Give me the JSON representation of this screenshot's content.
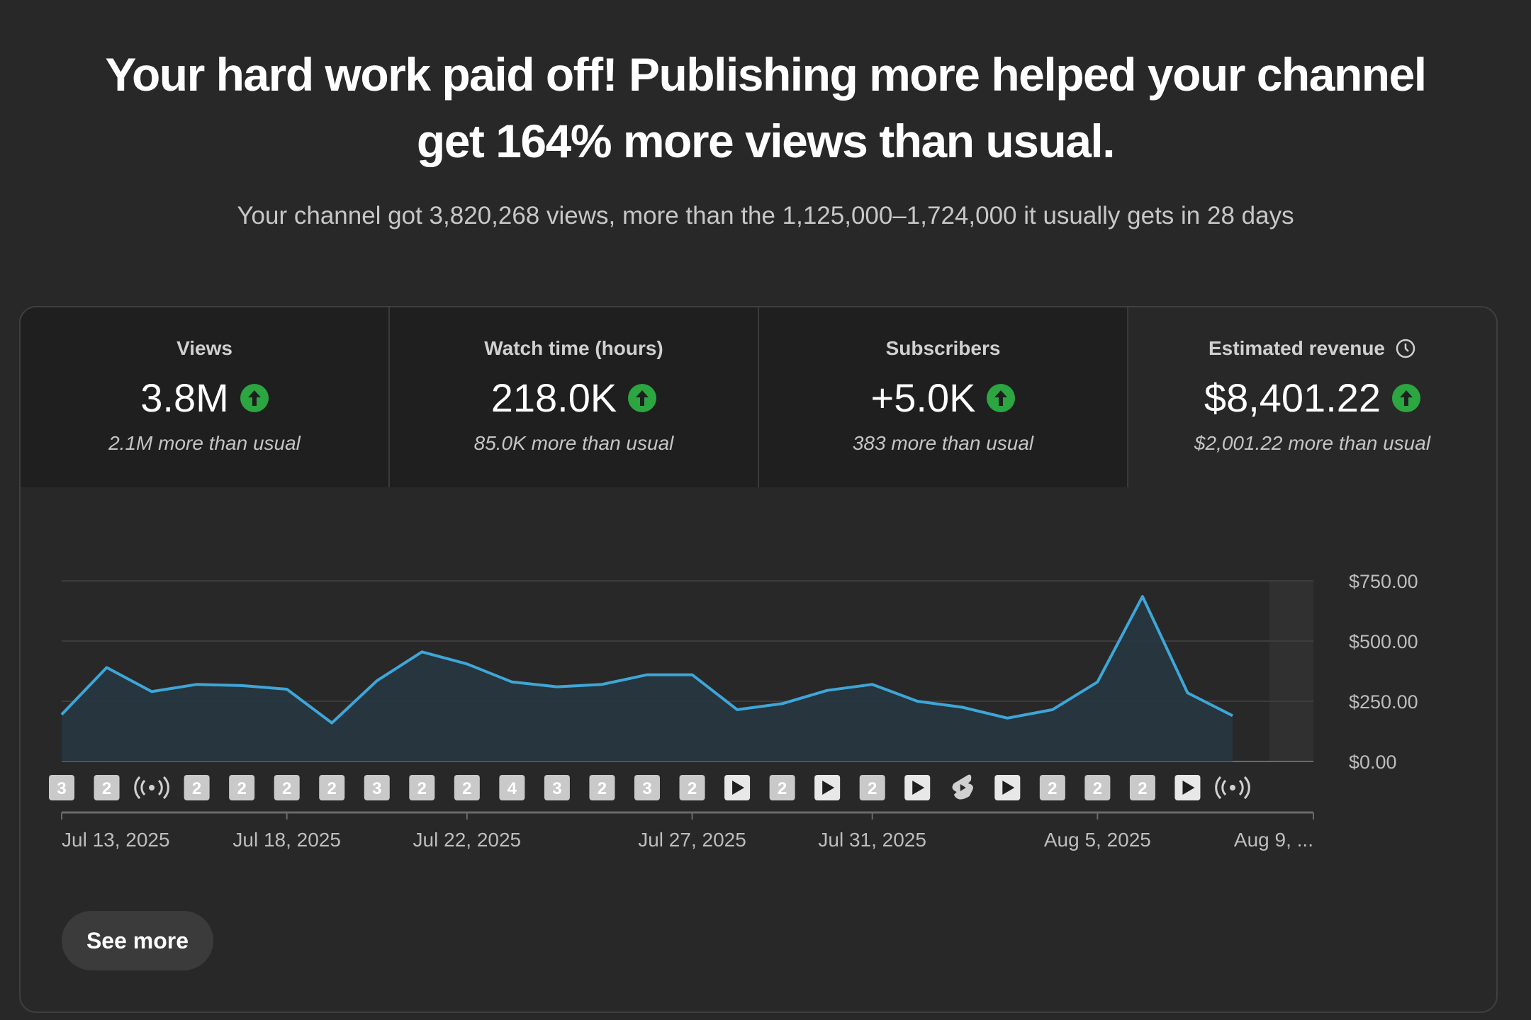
{
  "headline": {
    "line1": "Your hard work paid off! Publishing more helped your channel",
    "line2": "get 164% more views than usual."
  },
  "subtitle": "Your channel got 3,820,268 views, more than the 1,125,000–1,724,000 it usually gets in 28 days",
  "metrics": [
    {
      "label": "Views",
      "value": "3.8M",
      "delta": "2.1M more than usual",
      "trend": "up"
    },
    {
      "label": "Watch time (hours)",
      "value": "218.0K",
      "delta": "85.0K more than usual",
      "trend": "up"
    },
    {
      "label": "Subscribers",
      "value": "+5.0K",
      "delta": "383 more than usual",
      "trend": "up"
    },
    {
      "label": "Estimated revenue",
      "value": "$8,401.22",
      "delta": "$2,001.22 more than usual",
      "trend": "up",
      "icon": "clock-icon"
    }
  ],
  "selected_metric": "Estimated revenue",
  "colors": {
    "line": "#3ea6d8",
    "area": "#263640",
    "up": "#2ba640"
  },
  "chart_data": {
    "type": "area",
    "series": [
      {
        "values": [
          195,
          390,
          290,
          320,
          315,
          300,
          160,
          335,
          455,
          405,
          330,
          310,
          320,
          360,
          360,
          215,
          240,
          295,
          320,
          250,
          225,
          180,
          215,
          330,
          685,
          285,
          190
        ]
      }
    ],
    "ylim": [
      0,
      750
    ],
    "yticks": [
      "$750.00",
      "$500.00",
      "$250.00",
      "$0.00"
    ],
    "ytick_values": [
      750,
      500,
      250,
      0
    ],
    "xtick_labels": [
      "Jul 13, 2025",
      "Jul 18, 2025",
      "Jul 22, 2025",
      "Jul 27, 2025",
      "Jul 31, 2025",
      "Aug 5, 2025",
      "Aug 9, ..."
    ],
    "xtick_indices": [
      0,
      5,
      9,
      14,
      18,
      23,
      27
    ],
    "grid": true,
    "event_markers": [
      {
        "kind": "count",
        "text": "3"
      },
      {
        "kind": "count",
        "text": "2"
      },
      {
        "kind": "live-icon"
      },
      {
        "kind": "count",
        "text": "2"
      },
      {
        "kind": "count",
        "text": "2"
      },
      {
        "kind": "count",
        "text": "2"
      },
      {
        "kind": "count",
        "text": "2"
      },
      {
        "kind": "count",
        "text": "3"
      },
      {
        "kind": "count",
        "text": "2"
      },
      {
        "kind": "count",
        "text": "2"
      },
      {
        "kind": "count",
        "text": "4"
      },
      {
        "kind": "count",
        "text": "3"
      },
      {
        "kind": "count",
        "text": "2"
      },
      {
        "kind": "count",
        "text": "3"
      },
      {
        "kind": "count",
        "text": "2"
      },
      {
        "kind": "play-icon"
      },
      {
        "kind": "count",
        "text": "2"
      },
      {
        "kind": "play-icon"
      },
      {
        "kind": "count",
        "text": "2"
      },
      {
        "kind": "play-icon"
      },
      {
        "kind": "shorts-icon"
      },
      {
        "kind": "play-icon"
      },
      {
        "kind": "count",
        "text": "2"
      },
      {
        "kind": "count",
        "text": "2"
      },
      {
        "kind": "count",
        "text": "2"
      },
      {
        "kind": "play-icon"
      },
      {
        "kind": "live-icon"
      }
    ]
  },
  "see_more_label": "See more"
}
